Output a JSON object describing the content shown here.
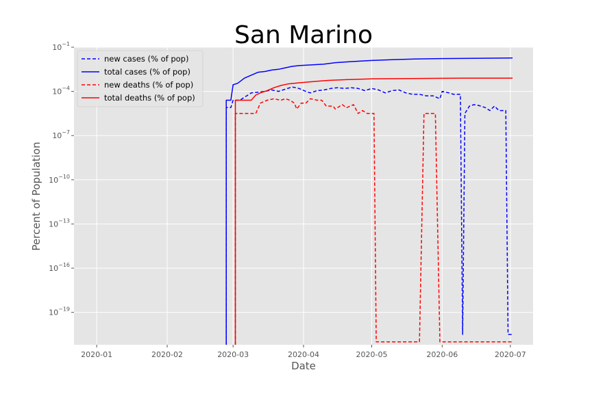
{
  "chart_data": {
    "type": "line",
    "title": "San Marino",
    "xlabel": "Date",
    "ylabel": "Percent of Population",
    "yscale": "log",
    "grid": true,
    "legend_position": "top-left",
    "xlim": [
      "2019-12-22",
      "2020-07-11"
    ],
    "ylim_exponent": [
      -21.2,
      -1
    ],
    "x_ticks": [
      "2020-01-01",
      "2020-02-01",
      "2020-03-01",
      "2020-04-01",
      "2020-05-01",
      "2020-06-01",
      "2020-07-01"
    ],
    "x_tick_labels": [
      "2020-01",
      "2020-02",
      "2020-03",
      "2020-04",
      "2020-05",
      "2020-06",
      "2020-07"
    ],
    "y_tick_exponents": [
      -1,
      -4,
      -7,
      -10,
      -13,
      -16,
      -19
    ],
    "series": [
      {
        "name": "new cases (% of pop)",
        "color": "#0000ff",
        "dash": true,
        "points": [
          [
            "2020-02-27",
            -22
          ],
          [
            "2020-02-27",
            -5.1
          ],
          [
            "2020-02-29",
            -5.1
          ],
          [
            "2020-03-01",
            -4.6
          ],
          [
            "2020-03-04",
            -4.6
          ],
          [
            "2020-03-06",
            -4.4
          ],
          [
            "2020-03-09",
            -4.1
          ],
          [
            "2020-03-12",
            -4.05
          ],
          [
            "2020-03-15",
            -4.0
          ],
          [
            "2020-03-18",
            -3.9
          ],
          [
            "2020-03-21",
            -4.0
          ],
          [
            "2020-03-24",
            -3.85
          ],
          [
            "2020-03-27",
            -3.7
          ],
          [
            "2020-03-30",
            -3.8
          ],
          [
            "2020-04-02",
            -4.0
          ],
          [
            "2020-04-04",
            -4.1
          ],
          [
            "2020-04-07",
            -3.95
          ],
          [
            "2020-04-10",
            -3.9
          ],
          [
            "2020-04-13",
            -3.8
          ],
          [
            "2020-04-16",
            -3.75
          ],
          [
            "2020-04-19",
            -3.8
          ],
          [
            "2020-04-22",
            -3.75
          ],
          [
            "2020-04-25",
            -3.8
          ],
          [
            "2020-04-28",
            -3.95
          ],
          [
            "2020-05-01",
            -3.8
          ],
          [
            "2020-05-04",
            -3.9
          ],
          [
            "2020-05-07",
            -4.1
          ],
          [
            "2020-05-10",
            -3.95
          ],
          [
            "2020-05-13",
            -3.9
          ],
          [
            "2020-05-16",
            -4.1
          ],
          [
            "2020-05-19",
            -4.2
          ],
          [
            "2020-05-22",
            -4.2
          ],
          [
            "2020-05-25",
            -4.3
          ],
          [
            "2020-05-28",
            -4.3
          ],
          [
            "2020-05-31",
            -4.5
          ],
          [
            "2020-06-01",
            -4.0
          ],
          [
            "2020-06-04",
            -4.1
          ],
          [
            "2020-06-06",
            -4.2
          ],
          [
            "2020-06-09",
            -4.2
          ],
          [
            "2020-06-10",
            -20.5
          ],
          [
            "2020-06-11",
            -5.5
          ],
          [
            "2020-06-13",
            -5.0
          ],
          [
            "2020-06-15",
            -4.9
          ],
          [
            "2020-06-17",
            -4.95
          ],
          [
            "2020-06-20",
            -5.1
          ],
          [
            "2020-06-22",
            -5.3
          ],
          [
            "2020-06-24",
            -5.0
          ],
          [
            "2020-06-26",
            -5.3
          ],
          [
            "2020-06-29",
            -5.3
          ],
          [
            "2020-06-30",
            -20.5
          ],
          [
            "2020-07-02",
            -20.5
          ]
        ]
      },
      {
        "name": "total cases (% of pop)",
        "color": "#0000ff",
        "dash": false,
        "points": [
          [
            "2020-02-27",
            -22
          ],
          [
            "2020-02-27",
            -4.6
          ],
          [
            "2020-02-29",
            -4.6
          ],
          [
            "2020-03-01",
            -3.55
          ],
          [
            "2020-03-03",
            -3.45
          ],
          [
            "2020-03-06",
            -3.1
          ],
          [
            "2020-03-09",
            -2.9
          ],
          [
            "2020-03-12",
            -2.7
          ],
          [
            "2020-03-15",
            -2.65
          ],
          [
            "2020-03-18",
            -2.55
          ],
          [
            "2020-03-21",
            -2.5
          ],
          [
            "2020-03-24",
            -2.4
          ],
          [
            "2020-03-27",
            -2.3
          ],
          [
            "2020-03-30",
            -2.25
          ],
          [
            "2020-04-05",
            -2.2
          ],
          [
            "2020-04-10",
            -2.15
          ],
          [
            "2020-04-15",
            -2.05
          ],
          [
            "2020-04-20",
            -2.0
          ],
          [
            "2020-04-25",
            -1.95
          ],
          [
            "2020-05-01",
            -1.9
          ],
          [
            "2020-05-10",
            -1.85
          ],
          [
            "2020-05-20",
            -1.8
          ],
          [
            "2020-06-01",
            -1.77
          ],
          [
            "2020-06-15",
            -1.75
          ],
          [
            "2020-07-02",
            -1.73
          ]
        ]
      },
      {
        "name": "new deaths (% of pop)",
        "color": "#ff0000",
        "dash": true,
        "points": [
          [
            "2020-03-02",
            -22
          ],
          [
            "2020-03-02",
            -5.5
          ],
          [
            "2020-03-05",
            -5.5
          ],
          [
            "2020-03-08",
            -5.5
          ],
          [
            "2020-03-11",
            -5.5
          ],
          [
            "2020-03-13",
            -4.8
          ],
          [
            "2020-03-16",
            -4.6
          ],
          [
            "2020-03-19",
            -4.5
          ],
          [
            "2020-03-22",
            -4.6
          ],
          [
            "2020-03-24",
            -4.5
          ],
          [
            "2020-03-26",
            -4.6
          ],
          [
            "2020-03-28",
            -4.8
          ],
          [
            "2020-03-29",
            -5.2
          ],
          [
            "2020-03-31",
            -4.8
          ],
          [
            "2020-04-02",
            -4.8
          ],
          [
            "2020-04-04",
            -4.5
          ],
          [
            "2020-04-07",
            -4.6
          ],
          [
            "2020-04-09",
            -4.6
          ],
          [
            "2020-04-11",
            -5.0
          ],
          [
            "2020-04-14",
            -5.0
          ],
          [
            "2020-04-15",
            -5.2
          ],
          [
            "2020-04-18",
            -4.9
          ],
          [
            "2020-04-20",
            -5.1
          ],
          [
            "2020-04-23",
            -4.9
          ],
          [
            "2020-04-25",
            -5.5
          ],
          [
            "2020-04-27",
            -5.3
          ],
          [
            "2020-04-29",
            -5.5
          ],
          [
            "2020-05-02",
            -5.5
          ],
          [
            "2020-05-03",
            -21.0
          ],
          [
            "2020-05-22",
            -21.0
          ],
          [
            "2020-05-24",
            -5.5
          ],
          [
            "2020-05-29",
            -5.5
          ],
          [
            "2020-05-31",
            -21.0
          ],
          [
            "2020-07-02",
            -21.0
          ]
        ]
      },
      {
        "name": "total deaths (% of pop)",
        "color": "#ff0000",
        "dash": false,
        "points": [
          [
            "2020-03-02",
            -22
          ],
          [
            "2020-03-02",
            -4.6
          ],
          [
            "2020-03-05",
            -4.6
          ],
          [
            "2020-03-08",
            -4.6
          ],
          [
            "2020-03-09",
            -4.6
          ],
          [
            "2020-03-11",
            -4.25
          ],
          [
            "2020-03-13",
            -4.1
          ],
          [
            "2020-03-16",
            -3.95
          ],
          [
            "2020-03-19",
            -3.75
          ],
          [
            "2020-03-22",
            -3.6
          ],
          [
            "2020-03-25",
            -3.5
          ],
          [
            "2020-03-28",
            -3.45
          ],
          [
            "2020-03-31",
            -3.4
          ],
          [
            "2020-04-04",
            -3.35
          ],
          [
            "2020-04-08",
            -3.3
          ],
          [
            "2020-04-12",
            -3.25
          ],
          [
            "2020-04-20",
            -3.2
          ],
          [
            "2020-05-01",
            -3.15
          ],
          [
            "2020-05-20",
            -3.12
          ],
          [
            "2020-06-10",
            -3.1
          ],
          [
            "2020-07-02",
            -3.1
          ]
        ]
      }
    ]
  }
}
